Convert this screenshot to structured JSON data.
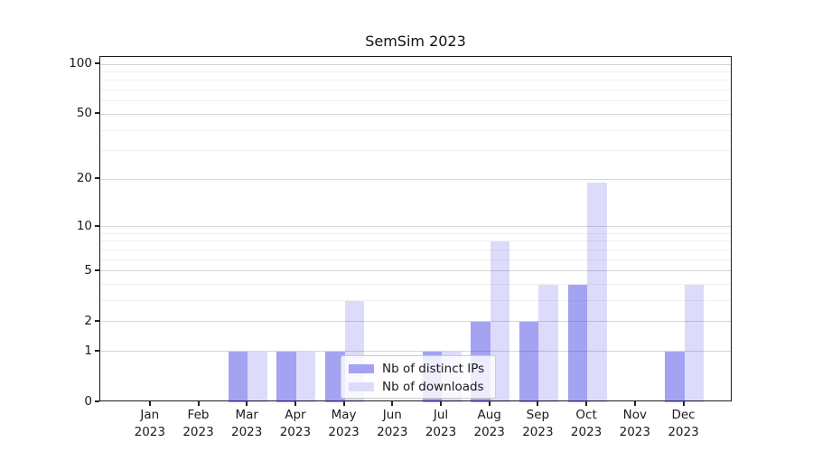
{
  "title": "SemSim 2023",
  "legend": {
    "items": [
      {
        "label": "Nb of distinct IPs",
        "swatch_hex": "#a3a3f1"
      },
      {
        "label": "Nb of downloads",
        "swatch_hex": "#dcdcfa"
      }
    ]
  },
  "chart_data": {
    "type": "bar",
    "title": "SemSim 2023",
    "categories": [
      "Jan",
      "Feb",
      "Mar",
      "Apr",
      "May",
      "Jun",
      "Jul",
      "Aug",
      "Sep",
      "Oct",
      "Nov",
      "Dec"
    ],
    "x_ticklabels": [
      [
        "Jan",
        "2023"
      ],
      [
        "Feb",
        "2023"
      ],
      [
        "Mar",
        "2023"
      ],
      [
        "Apr",
        "2023"
      ],
      [
        "May",
        "2023"
      ],
      [
        "Jun",
        "2023"
      ],
      [
        "Jul",
        "2023"
      ],
      [
        "Aug",
        "2023"
      ],
      [
        "Sep",
        "2023"
      ],
      [
        "Oct",
        "2023"
      ],
      [
        "Nov",
        "2023"
      ],
      [
        "Dec",
        "2023"
      ]
    ],
    "series": [
      {
        "name": "Nb of distinct IPs",
        "values": [
          0,
          0,
          1,
          1,
          1,
          0,
          1,
          2,
          2,
          4,
          0,
          1
        ],
        "bar_rgba": "rgba(50,50,225,0.45)",
        "swatch_hex": "#a3a3f1"
      },
      {
        "name": "Nb of downloads",
        "values": [
          0,
          0,
          1,
          1,
          3,
          0,
          1,
          8,
          4,
          19,
          0,
          4
        ],
        "bar_rgba": "rgba(50,50,225,0.17)",
        "swatch_hex": "#dcdcfa"
      }
    ],
    "y_scale": "log1p",
    "y_ticks": [
      0,
      1,
      2,
      5,
      10,
      20,
      50,
      100
    ],
    "y_ticklabels": [
      "0",
      "1",
      "2",
      "5",
      "10",
      "20",
      "50",
      "100"
    ],
    "y_minor_ticks": [
      3,
      4,
      6,
      7,
      8,
      9,
      30,
      40,
      60,
      70,
      80,
      90
    ],
    "ylim": [
      0,
      110.5
    ],
    "grid": true,
    "legend_position": "lower center (inside axes)"
  }
}
